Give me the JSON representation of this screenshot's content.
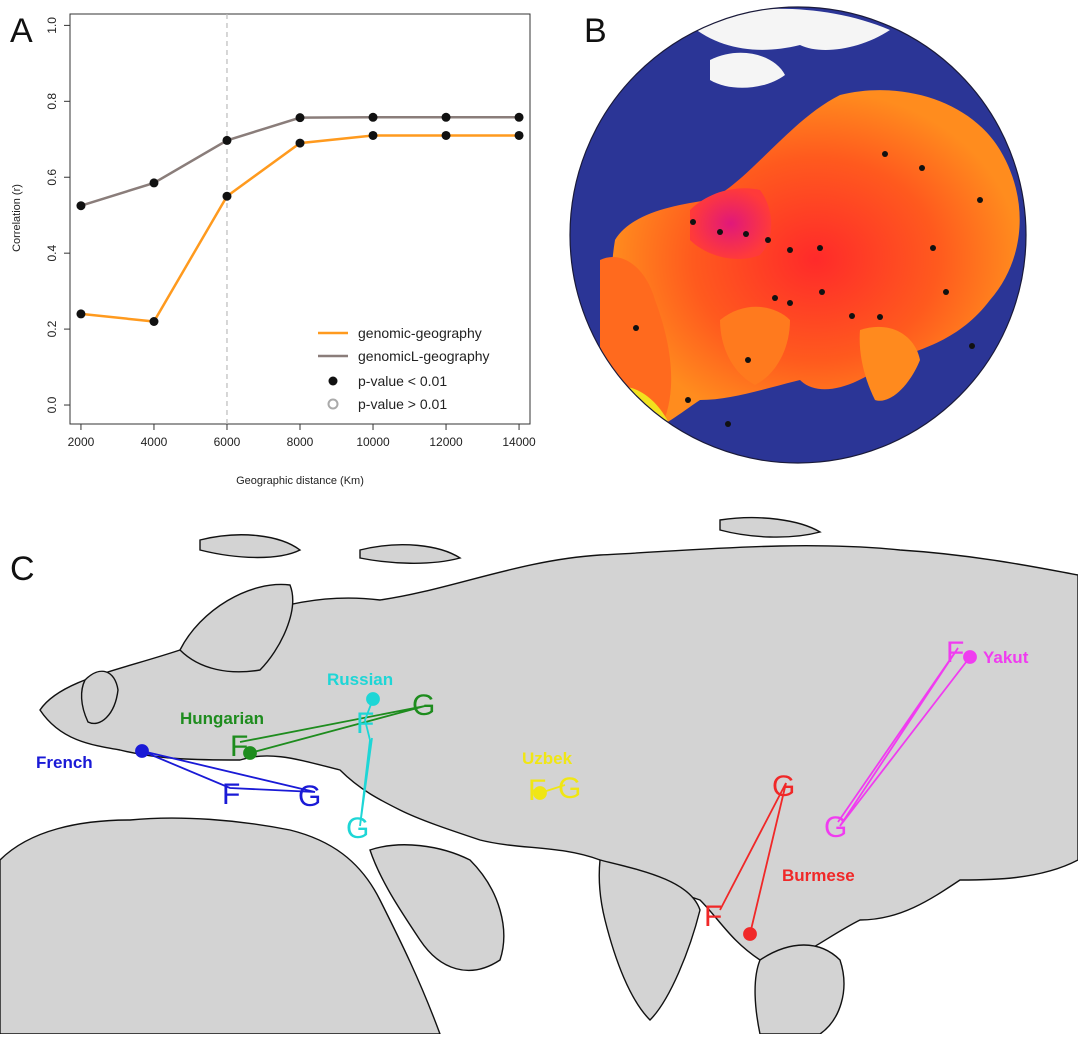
{
  "panels": {
    "a": {
      "letter": "A"
    },
    "b": {
      "letter": "B"
    },
    "c": {
      "letter": "C"
    }
  },
  "chart_data": {
    "type": "line",
    "title": "",
    "xlabel": "Geographic distance (Km)",
    "ylabel": "Correlation (r)",
    "x": [
      2000,
      4000,
      6000,
      8000,
      10000,
      12000,
      14000
    ],
    "x_ticks": [
      "2000",
      "4000",
      "6000",
      "8000",
      "10000",
      "12000",
      "14000"
    ],
    "y_ticks": [
      "0.0",
      "0.2",
      "0.4",
      "0.6",
      "0.8",
      "1.0"
    ],
    "xlim": [
      1700,
      14300
    ],
    "ylim": [
      -0.05,
      1.03
    ],
    "vline_x": 6000,
    "series": [
      {
        "name": "genomic-geography",
        "color": "#ff9a1e",
        "values": [
          0.24,
          0.22,
          0.55,
          0.69,
          0.71,
          0.71,
          0.71
        ]
      },
      {
        "name": "genomicL-geography",
        "color": "#8a7d7a",
        "values": [
          0.525,
          0.585,
          0.697,
          0.757,
          0.758,
          0.758,
          0.758
        ]
      }
    ],
    "legend": {
      "position": "bottom-right",
      "entries": [
        "genomic-geography",
        "genomicL-geography",
        "p-value < 0.01",
        "p-value > 0.01"
      ]
    }
  },
  "map_c": {
    "populations": [
      {
        "name": "French",
        "color": "#1a1ad6"
      },
      {
        "name": "Hungarian",
        "color": "#1e8c1e"
      },
      {
        "name": "Russian",
        "color": "#1ed6d6"
      },
      {
        "name": "Uzbek",
        "color": "#f0e614"
      },
      {
        "name": "Yakut",
        "color": "#f03cf0"
      },
      {
        "name": "Burmese",
        "color": "#f02828"
      }
    ],
    "marker_letters": {
      "f": "F",
      "g": "G"
    }
  }
}
